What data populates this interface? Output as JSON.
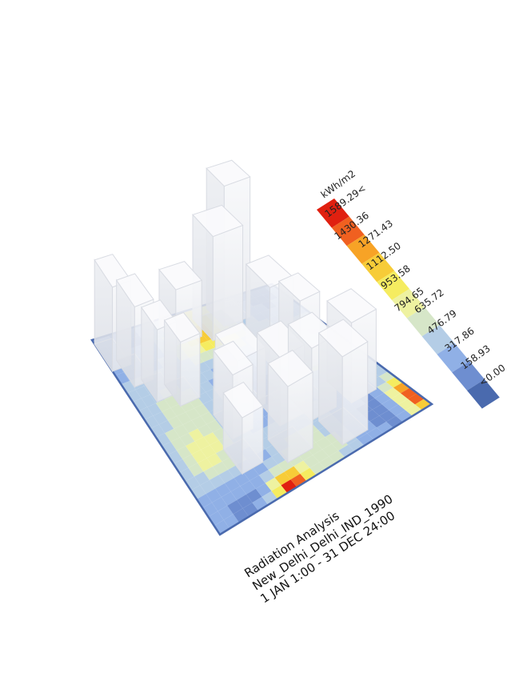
{
  "title": {
    "line1": "Radiation Analysis",
    "line2": "New_Delhi_Delhi_IND_1990",
    "line3": "1 JAN 1:00 - 31 DEC 24:00"
  },
  "legend": {
    "unit": "kWh/m2",
    "labels": [
      "1589.29<",
      "1430.36",
      "1271.43",
      "1112.50",
      "953.58",
      "794.65",
      "635.72",
      "476.79",
      "317.86",
      "158.93",
      "<0.00"
    ],
    "colors": [
      "#e02010",
      "#f06020",
      "#f7a326",
      "#f7cc38",
      "#f5ec60",
      "#eef2a0",
      "#d6e6c8",
      "#b4cde6",
      "#90b0e6",
      "#6e8ed0",
      "#4a6aae"
    ]
  },
  "colors": {
    "ground_outline": "#4a6aae",
    "building_fill": "#f3f4f7",
    "building_edge": "#d9dce3"
  }
}
